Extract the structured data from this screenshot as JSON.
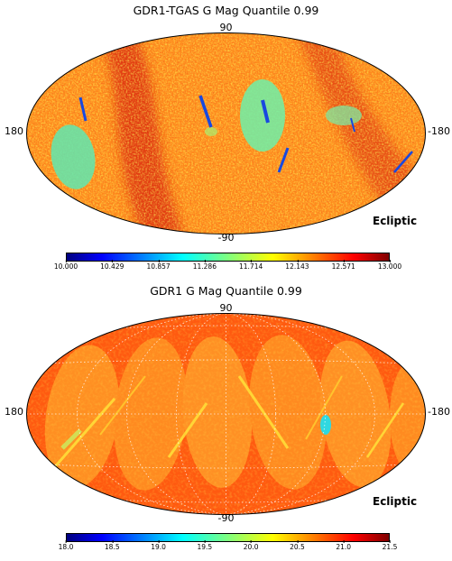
{
  "panels": [
    {
      "title": "GDR1-TGAS G Mag Quantile 0.99",
      "label_top": "90",
      "label_bottom": "-90",
      "label_left": "180",
      "label_right": "-180",
      "frame": "Ecliptic",
      "colorbar": {
        "min": 10.0,
        "max": 13.0,
        "ticks": [
          "10.000",
          "10.429",
          "10.857",
          "11.286",
          "11.714",
          "12.143",
          "12.571",
          "13.000"
        ]
      }
    },
    {
      "title": "GDR1 G Mag Quantile 0.99",
      "label_top": "90",
      "label_bottom": "-90",
      "label_left": "180",
      "label_right": "-180",
      "frame": "Ecliptic",
      "colorbar": {
        "min": 18.0,
        "max": 21.5,
        "ticks": [
          "18.0",
          "18.5",
          "19.0",
          "19.5",
          "20.0",
          "20.5",
          "21.0",
          "21.5"
        ]
      }
    }
  ],
  "colors": {
    "jet": [
      "#00007f",
      "#0000ff",
      "#007fff",
      "#00ffff",
      "#7fff7f",
      "#ffff00",
      "#ff7f00",
      "#ff0000",
      "#7f0000"
    ],
    "map1_base": "#ff7a1a",
    "map2_base": "#ff7a1a",
    "graticule": "#ffffff"
  }
}
